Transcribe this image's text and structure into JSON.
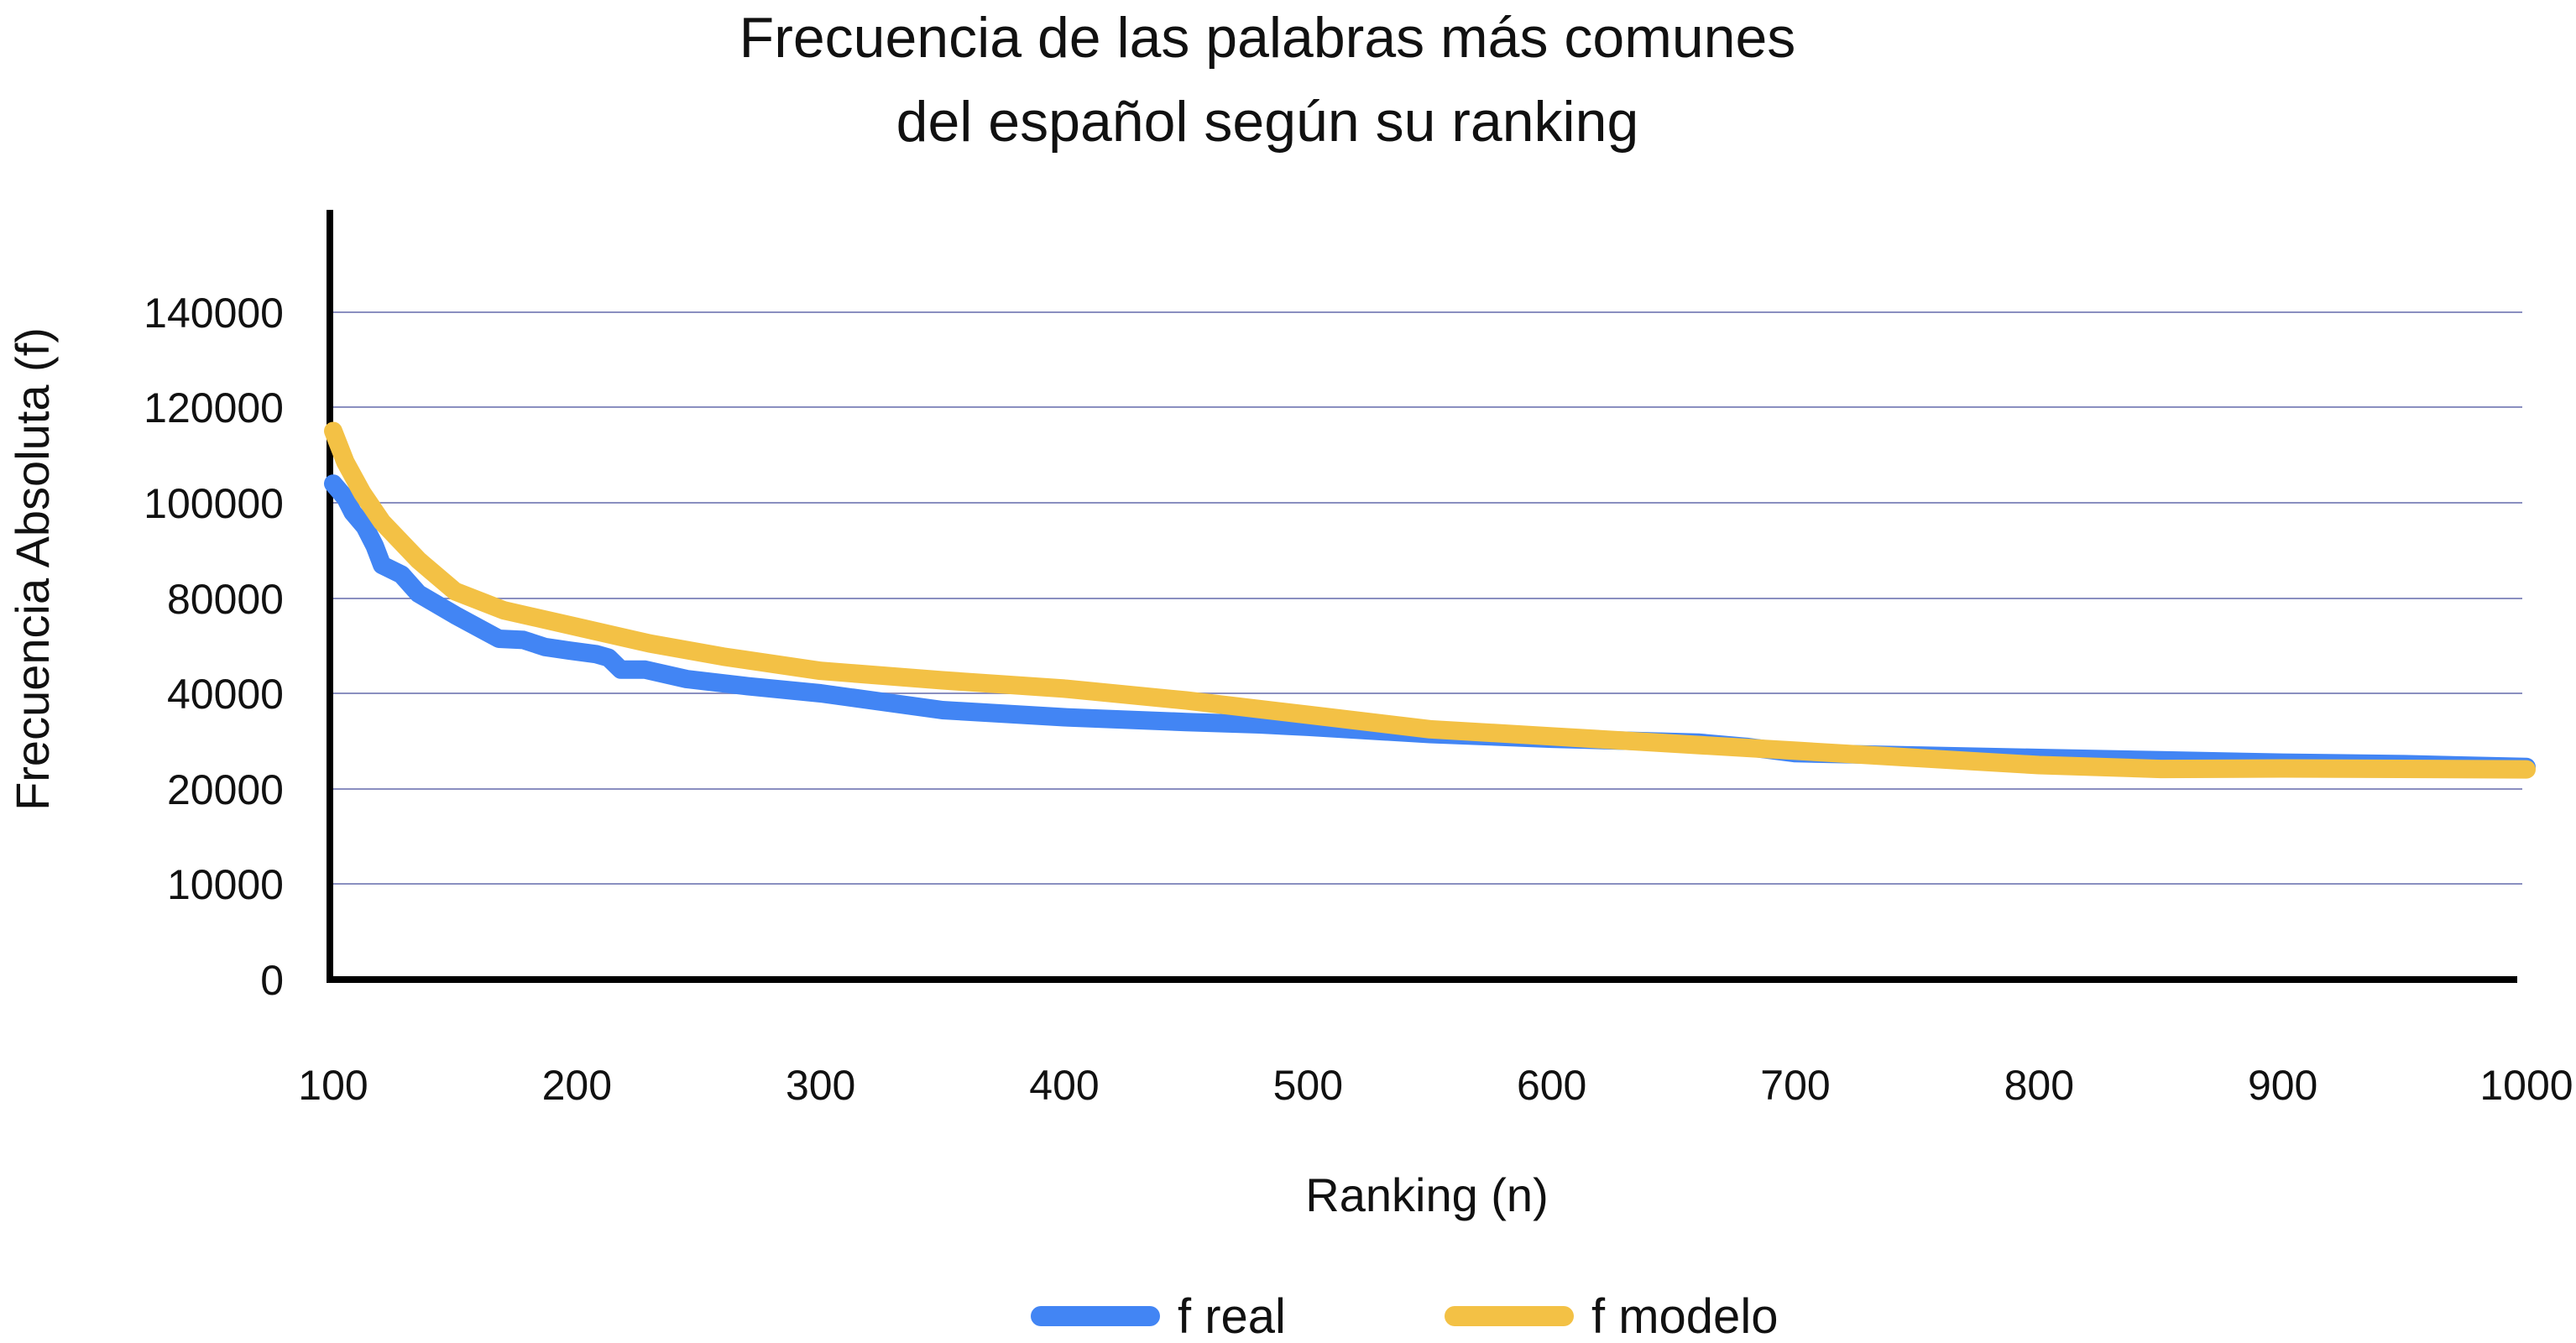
{
  "chart_data": {
    "type": "line",
    "title_line1": "Frecuencia de las palabras más comunes",
    "title_line2": "del español según su ranking",
    "xlabel": "Ranking (n)",
    "ylabel": "Frecuencia Absoluta (f)",
    "x_ticks": [
      "100",
      "200",
      "300",
      "400",
      "500",
      "600",
      "700",
      "800",
      "900",
      "1000"
    ],
    "y_ticks": [
      "0",
      "10000",
      "20000",
      "40000",
      "80000",
      "100000",
      "120000",
      "140000"
    ],
    "xlim": [
      100,
      1000
    ],
    "grid": true,
    "legend_position": "bottom",
    "series": [
      {
        "name": "f real",
        "color": "#4285f4",
        "points": [
          [
            100,
            104000
          ],
          [
            105,
            101000
          ],
          [
            108,
            98000
          ],
          [
            113,
            95000
          ],
          [
            117,
            91000
          ],
          [
            120,
            87000
          ],
          [
            128,
            85000
          ],
          [
            135,
            81000
          ],
          [
            150,
            73000
          ],
          [
            168,
            63000
          ],
          [
            178,
            62500
          ],
          [
            187,
            59500
          ],
          [
            197,
            58000
          ],
          [
            208,
            56500
          ],
          [
            213,
            55000
          ],
          [
            218,
            50000
          ],
          [
            228,
            50000
          ],
          [
            245,
            46000
          ],
          [
            270,
            43000
          ],
          [
            300,
            40000
          ],
          [
            350,
            36500
          ],
          [
            400,
            35000
          ],
          [
            450,
            34000
          ],
          [
            480,
            33500
          ],
          [
            500,
            33000
          ],
          [
            550,
            31500
          ],
          [
            600,
            30500
          ],
          [
            660,
            29700
          ],
          [
            680,
            28800
          ],
          [
            700,
            27500
          ],
          [
            750,
            27000
          ],
          [
            800,
            26500
          ],
          [
            850,
            26000
          ],
          [
            900,
            25500
          ],
          [
            950,
            25200
          ],
          [
            1000,
            24600
          ]
        ]
      },
      {
        "name": "f modelo",
        "color": "#f3c145",
        "points": [
          [
            100,
            115000
          ],
          [
            105,
            108500
          ],
          [
            112,
            102000
          ],
          [
            120,
            96000
          ],
          [
            135,
            88000
          ],
          [
            150,
            81500
          ],
          [
            170,
            75000
          ],
          [
            200,
            68000
          ],
          [
            230,
            61000
          ],
          [
            260,
            55500
          ],
          [
            300,
            49500
          ],
          [
            350,
            45500
          ],
          [
            400,
            42000
          ],
          [
            450,
            38500
          ],
          [
            500,
            35500
          ],
          [
            550,
            32500
          ],
          [
            600,
            31000
          ],
          [
            650,
            29500
          ],
          [
            700,
            28000
          ],
          [
            750,
            26500
          ],
          [
            800,
            25000
          ],
          [
            850,
            24200
          ],
          [
            900,
            24300
          ],
          [
            1000,
            24100
          ]
        ]
      }
    ]
  }
}
